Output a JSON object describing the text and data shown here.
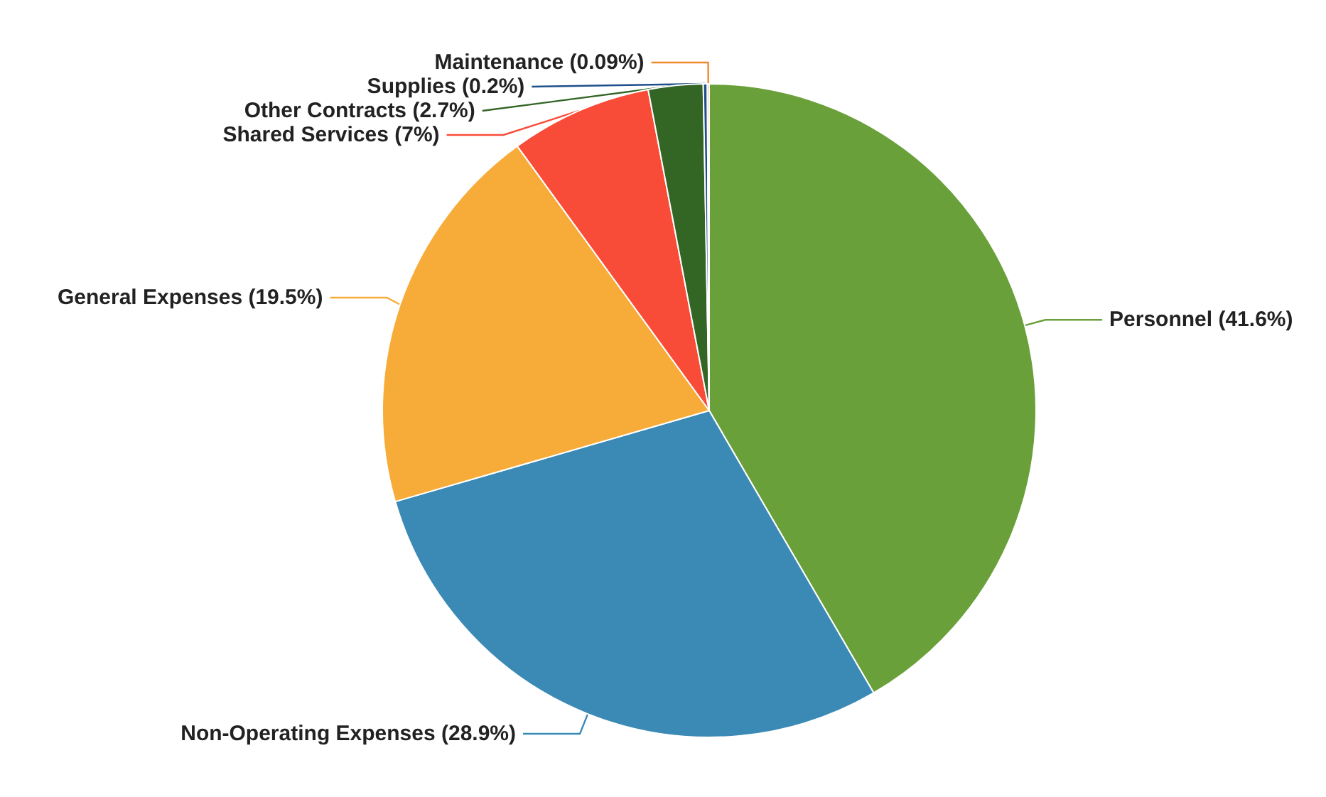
{
  "chart_data": {
    "type": "pie",
    "categories": [
      "Personnel",
      "Non-Operating Expenses",
      "General Expenses",
      "Shared Services",
      "Other Contracts",
      "Supplies",
      "Maintenance"
    ],
    "values": [
      41.6,
      28.9,
      19.5,
      7,
      2.7,
      0.2,
      0.09
    ],
    "value_labels": [
      "(41.6%)",
      "(28.9%)",
      "(19.5%)",
      "(7%)",
      "(2.7%)",
      "(0.2%)",
      "(0.09%)"
    ],
    "colors": [
      "#6aa03a",
      "#3b8ab5",
      "#f7ab38",
      "#f94c38",
      "#336525",
      "#1f4f8a",
      "#f08a2a"
    ],
    "legend": false
  }
}
